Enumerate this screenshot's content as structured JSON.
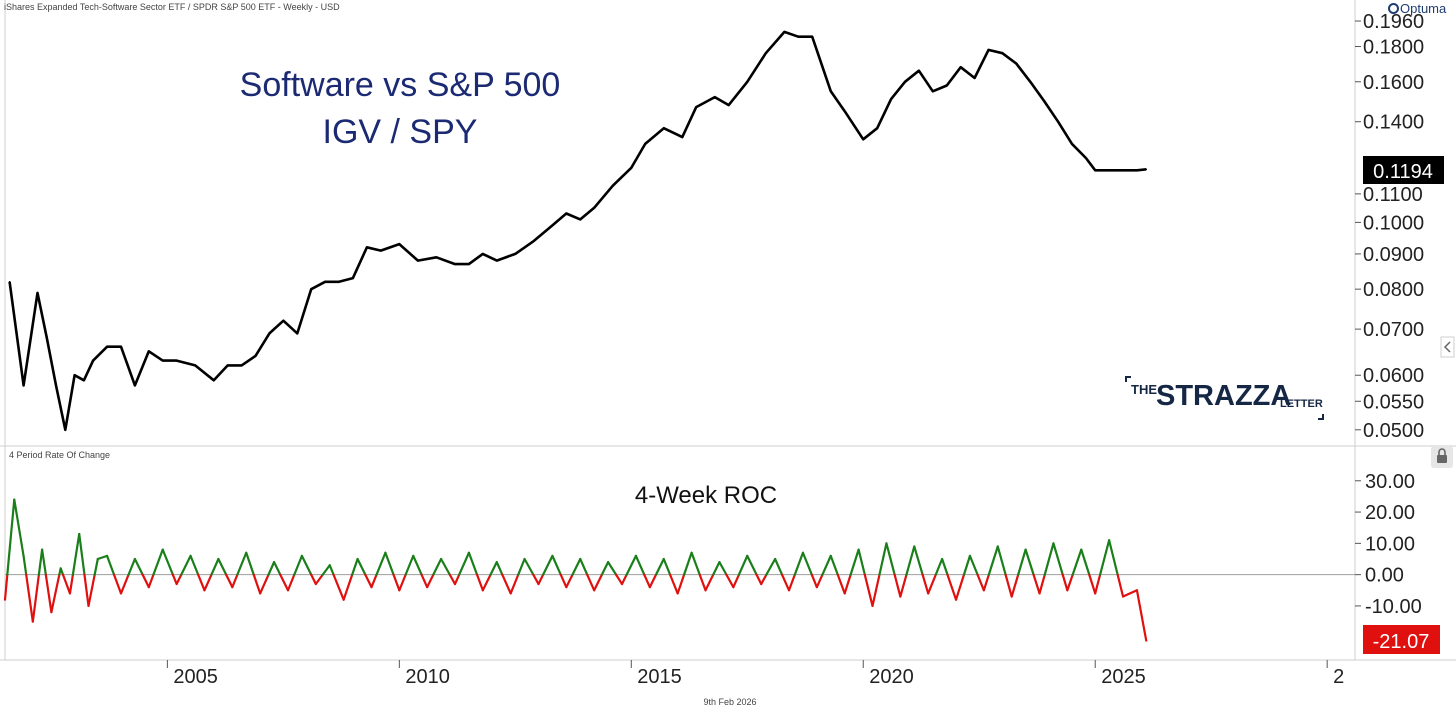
{
  "header": {
    "instrument_line": "iShares Expanded Tech-Software Sector ETF / SPDR S&P 500 ETF - Weekly - USD",
    "brand": "Optuma"
  },
  "footer": {
    "date_label": "9th Feb 2026"
  },
  "colors": {
    "price_line": "#000000",
    "title_text": "#1b2a72",
    "roc_positive": "#1a7f1a",
    "roc_negative": "#e0100e",
    "last_price_badge": "#000000",
    "last_roc_badge": "#e0100e",
    "logo": "#152744"
  },
  "logo": {
    "prefix": "THE",
    "name": "STRAZZA",
    "suffix": "LETTER"
  },
  "chart_data": [
    {
      "type": "line",
      "title": "Software vs S&P 500",
      "subtitle": "IGV / SPY",
      "scale": "log",
      "ylim": [
        0.048,
        0.198
      ],
      "xlim": [
        2001.5,
        2030.6
      ],
      "y_ticks": [
        "0.0500",
        "0.0550",
        "0.0600",
        "0.0700",
        "0.0800",
        "0.0900",
        "0.1000",
        "0.1100",
        "0.1400",
        "0.1600",
        "0.1800",
        "0.1960"
      ],
      "y_tick_values": [
        0.05,
        0.055,
        0.06,
        0.07,
        0.08,
        0.09,
        0.1,
        0.11,
        0.14,
        0.16,
        0.18,
        0.196
      ],
      "last_value_label": "0.1194",
      "series": [
        {
          "x": [
            2001.6,
            2001.9,
            2002.2,
            2002.4,
            2002.6,
            2002.8,
            2003.0,
            2003.2,
            2003.4,
            2003.7,
            2004.0,
            2004.3,
            2004.6,
            2004.9,
            2005.2,
            2005.6,
            2006.0,
            2006.3,
            2006.6,
            2006.9,
            2007.2,
            2007.5,
            2007.8,
            2008.1,
            2008.4,
            2008.7,
            2009.0,
            2009.3,
            2009.6,
            2010.0,
            2010.4,
            2010.8,
            2011.2,
            2011.5,
            2011.8,
            2012.1,
            2012.5,
            2012.9,
            2013.3,
            2013.6,
            2013.9,
            2014.2,
            2014.6,
            2015.0,
            2015.3,
            2015.7,
            2016.1,
            2016.4,
            2016.8,
            2017.1,
            2017.5,
            2017.9,
            2018.3,
            2018.6,
            2018.9,
            2019.3,
            2019.6,
            2020.0,
            2020.3,
            2020.6,
            2020.9,
            2021.2,
            2021.5,
            2021.8,
            2022.1,
            2022.4,
            2022.7,
            2023.0,
            2023.3,
            2023.6,
            2023.9,
            2024.2,
            2024.5,
            2024.8,
            2025.0,
            2025.2,
            2025.4,
            2025.6,
            2025.8,
            2025.9,
            2026.1
          ],
          "values": [
            0.082,
            0.058,
            0.079,
            0.068,
            0.058,
            0.05,
            0.06,
            0.059,
            0.063,
            0.066,
            0.066,
            0.058,
            0.065,
            0.063,
            0.063,
            0.062,
            0.059,
            0.062,
            0.062,
            0.064,
            0.069,
            0.072,
            0.069,
            0.08,
            0.082,
            0.082,
            0.083,
            0.092,
            0.091,
            0.093,
            0.088,
            0.089,
            0.087,
            0.087,
            0.09,
            0.088,
            0.09,
            0.094,
            0.099,
            0.103,
            0.101,
            0.105,
            0.113,
            0.12,
            0.13,
            0.137,
            0.133,
            0.147,
            0.152,
            0.148,
            0.16,
            0.176,
            0.189,
            0.186,
            0.186,
            0.155,
            0.145,
            0.132,
            0.137,
            0.151,
            0.16,
            0.166,
            0.155,
            0.158,
            0.168,
            0.162,
            0.178,
            0.176,
            0.17,
            0.16,
            0.15,
            0.14,
            0.13,
            0.124,
            0.119,
            0.119,
            0.119,
            0.119,
            0.119,
            0.119,
            0.1194
          ]
        }
      ]
    },
    {
      "type": "area",
      "title": "4-Week ROC",
      "indicator_label": "4 Period Rate Of Change",
      "ylim": [
        -26,
        36
      ],
      "y_ticks": [
        "-10.00",
        "0.00",
        "10.00",
        "20.00",
        "30.00"
      ],
      "y_tick_values": [
        -10,
        0,
        10,
        20,
        30
      ],
      "last_value_label": "-21.07",
      "x_ticks": [
        "2005",
        "2010",
        "2015",
        "2020",
        "2025",
        "2"
      ],
      "x_tick_values": [
        2005,
        2010,
        2015,
        2020,
        2025,
        2030
      ],
      "series": [
        {
          "x": [
            2001.5,
            2001.7,
            2001.9,
            2002.1,
            2002.3,
            2002.5,
            2002.7,
            2002.9,
            2003.1,
            2003.3,
            2003.5,
            2003.7,
            2004.0,
            2004.3,
            2004.6,
            2004.9,
            2005.2,
            2005.5,
            2005.8,
            2006.1,
            2006.4,
            2006.7,
            2007.0,
            2007.3,
            2007.6,
            2007.9,
            2008.2,
            2008.5,
            2008.8,
            2009.1,
            2009.4,
            2009.7,
            2010.0,
            2010.3,
            2010.6,
            2010.9,
            2011.2,
            2011.5,
            2011.8,
            2012.1,
            2012.4,
            2012.7,
            2013.0,
            2013.3,
            2013.6,
            2013.9,
            2014.2,
            2014.5,
            2014.8,
            2015.1,
            2015.4,
            2015.7,
            2016.0,
            2016.3,
            2016.6,
            2016.9,
            2017.2,
            2017.5,
            2017.8,
            2018.1,
            2018.4,
            2018.7,
            2019.0,
            2019.3,
            2019.6,
            2019.9,
            2020.2,
            2020.5,
            2020.8,
            2021.1,
            2021.4,
            2021.7,
            2022.0,
            2022.3,
            2022.6,
            2022.9,
            2023.2,
            2023.5,
            2023.8,
            2024.1,
            2024.4,
            2024.7,
            2025.0,
            2025.3,
            2025.6,
            2025.9,
            2026.1
          ],
          "values": [
            -8,
            24,
            6,
            -15,
            8,
            -12,
            2,
            -6,
            13,
            -10,
            5,
            6,
            -6,
            5,
            -4,
            8,
            -3,
            6,
            -5,
            5,
            -4,
            7,
            -6,
            4,
            -5,
            6,
            -3,
            3,
            -8,
            5,
            -4,
            7,
            -5,
            6,
            -4,
            5,
            -3,
            7,
            -5,
            4,
            -6,
            5,
            -3,
            6,
            -4,
            5,
            -5,
            4,
            -3,
            6,
            -4,
            5,
            -6,
            7,
            -5,
            4,
            -4,
            6,
            -3,
            5,
            -5,
            7,
            -4,
            6,
            -6,
            8,
            -10,
            10,
            -7,
            9,
            -6,
            5,
            -8,
            6,
            -5,
            9,
            -7,
            8,
            -6,
            10,
            -5,
            8,
            -6,
            11,
            -7,
            -5,
            -21.07
          ]
        }
      ]
    }
  ]
}
